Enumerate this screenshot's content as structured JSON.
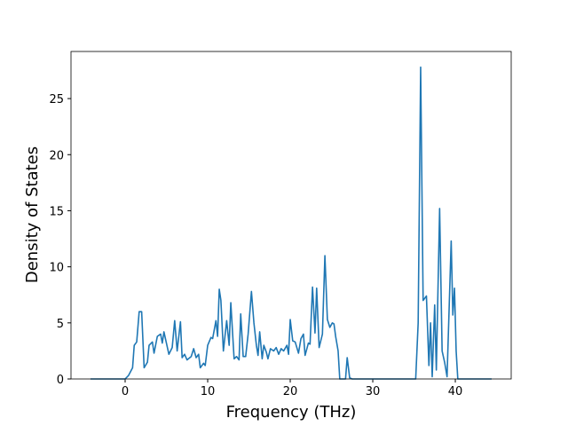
{
  "chart_data": {
    "type": "line",
    "x_label": "Frequency (THz)",
    "y_label": "Density of States",
    "xlim": [
      -6.56,
      46.77
    ],
    "ylim": [
      0,
      29.2
    ],
    "xticks": [
      0,
      10,
      20,
      30,
      40
    ],
    "yticks": [
      0,
      5,
      10,
      15,
      20,
      25
    ],
    "color": "#1f77b4",
    "x": [
      -4.2,
      0,
      0.4,
      0.9,
      1.1,
      1.4,
      1.7,
      2,
      2.3,
      2.7,
      2.9,
      3.3,
      3.5,
      3.9,
      4.3,
      4.5,
      4.7,
      5.3,
      5.7,
      6,
      6.3,
      6.7,
      6.9,
      7.2,
      7.5,
      8,
      8.3,
      8.6,
      8.9,
      9.1,
      9.5,
      9.7,
      10,
      10.4,
      10.6,
      11,
      11.2,
      11.4,
      11.6,
      11.9,
      12.3,
      12.6,
      12.8,
      13.2,
      13.5,
      13.8,
      14,
      14.3,
      14.6,
      14.9,
      15.3,
      15.6,
      15.9,
      16.1,
      16.3,
      16.6,
      16.8,
      17.1,
      17.3,
      17.6,
      18,
      18.3,
      18.6,
      18.9,
      19.2,
      19.6,
      19.8,
      20,
      20.3,
      20.6,
      21,
      21.3,
      21.6,
      21.8,
      22.2,
      22.4,
      22.7,
      23,
      23.2,
      23.5,
      23.9,
      24.2,
      24.5,
      24.8,
      25.1,
      25.3,
      25.5,
      25.8,
      26,
      26.7,
      26.9,
      27.2,
      27.5,
      35.2,
      35.5,
      35.8,
      36.1,
      36.5,
      36.8,
      37,
      37.2,
      37.5,
      37.7,
      38.1,
      38.4,
      38.7,
      39,
      39.5,
      39.7,
      39.9,
      40.1,
      40.3,
      44.4
    ],
    "values": [
      0,
      0,
      0.3,
      1,
      3,
      3.3,
      6,
      6,
      1,
      1.5,
      3,
      3.3,
      2.3,
      3.8,
      4,
      3.2,
      4.2,
      2.2,
      2.8,
      5.2,
      2.5,
      5.1,
      1.9,
      2.2,
      1.7,
      2,
      2.7,
      1.9,
      2.2,
      1,
      1.4,
      1.2,
      3,
      3.7,
      3.6,
      5.2,
      3.8,
      8,
      7,
      2.5,
      5.2,
      3,
      6.8,
      1.8,
      2,
      1.7,
      5.8,
      2,
      2,
      4,
      7.8,
      5,
      3,
      2.1,
      4.2,
      1.8,
      3,
      2.4,
      1.8,
      2.7,
      2.5,
      2.8,
      2.2,
      2.7,
      2.5,
      3,
      2.2,
      5.3,
      3.4,
      3.3,
      2.3,
      3.6,
      4,
      2.1,
      3.2,
      3.1,
      8.2,
      4.1,
      8.1,
      2.8,
      4,
      11,
      5.3,
      4.6,
      5,
      4.9,
      3.8,
      2.5,
      0,
      0,
      1.9,
      0.1,
      0,
      0,
      5,
      27.8,
      7,
      7.4,
      1.2,
      5,
      0.2,
      6.6,
      0.8,
      15.2,
      2.5,
      1.5,
      0.2,
      12.3,
      5.7,
      8.1,
      2.5,
      0,
      0
    ]
  }
}
